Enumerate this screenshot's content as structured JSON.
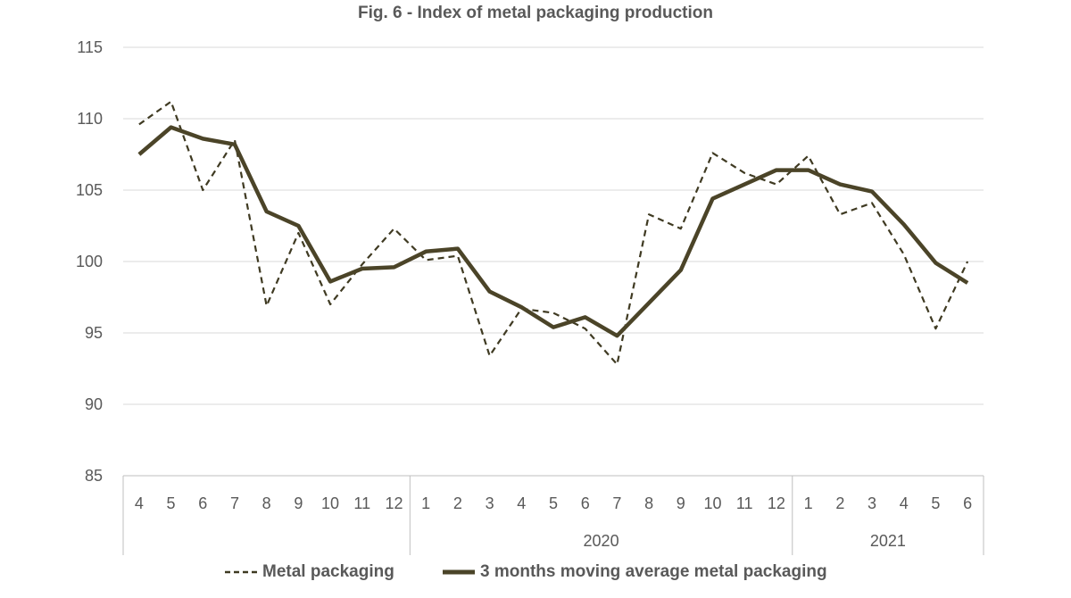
{
  "chart_data": {
    "type": "line",
    "title": "Fig. 6 - Index of metal packaging production",
    "xlabel": "",
    "ylabel": "",
    "ylim": [
      85,
      115
    ],
    "yticks": [
      85,
      90,
      95,
      100,
      105,
      110,
      115
    ],
    "grid": true,
    "legend_position": "bottom",
    "categories": [
      "4",
      "5",
      "6",
      "7",
      "8",
      "9",
      "10",
      "11",
      "12",
      "1",
      "2",
      "3",
      "4",
      "5",
      "6",
      "7",
      "8",
      "9",
      "10",
      "11",
      "12",
      "1",
      "2",
      "3",
      "4",
      "5",
      "6"
    ],
    "year_groups": [
      {
        "label": "",
        "count": 9
      },
      {
        "label": "2020",
        "count": 12
      },
      {
        "label": "2021",
        "count": 6
      }
    ],
    "series": [
      {
        "name": "Metal packaging",
        "style": "dashed",
        "color": "#3f3a22",
        "values": [
          109.6,
          111.2,
          105.0,
          108.5,
          96.9,
          102.0,
          97.0,
          99.8,
          102.3,
          100.1,
          100.4,
          93.4,
          96.7,
          96.4,
          95.3,
          92.8,
          103.3,
          102.3,
          107.6,
          106.2,
          105.4,
          107.4,
          103.3,
          104.1,
          100.5,
          95.3,
          100.0
        ]
      },
      {
        "name": "3 months moving average metal packaging",
        "style": "solid",
        "color": "#4b4428",
        "values": [
          107.5,
          109.4,
          108.6,
          108.2,
          103.5,
          102.5,
          98.6,
          99.5,
          99.6,
          100.7,
          100.9,
          97.9,
          96.8,
          95.4,
          96.1,
          94.8,
          97.1,
          99.4,
          104.4,
          105.4,
          106.4,
          106.4,
          105.4,
          104.9,
          102.6,
          99.9,
          98.5
        ]
      }
    ]
  }
}
